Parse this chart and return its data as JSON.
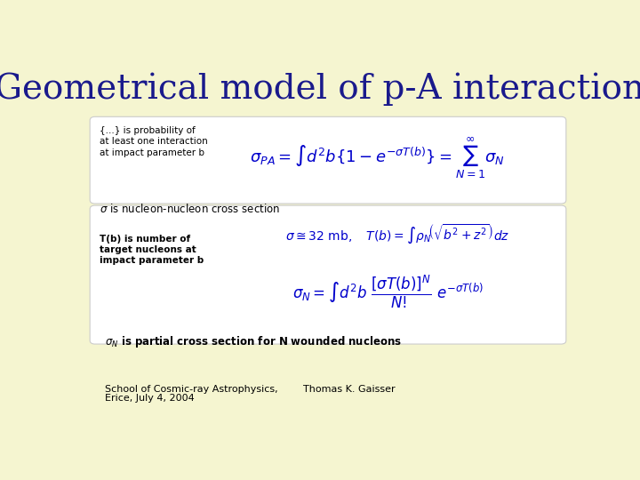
{
  "background_color": "#f5f5d0",
  "title": "Geometrical model of p-A interactions",
  "title_color": "#1a1a8c",
  "title_fontsize": 28,
  "title_family": "serif",
  "box_color": "#ffffff",
  "box_edge_color": "#cccccc",
  "formula_color": "#0000cc",
  "label_color": "#000000",
  "text1_line1": "{...} is probability of",
  "text1_line2": "at least one interaction",
  "text1_line3": "at impact parameter b",
  "text2": "is nucleon-nucleon cross section",
  "text3_line1": "T(b) is number of",
  "text3_line2": "target nucleons at",
  "text3_line3": "impact parameter b",
  "text4_pre": "is partial cross section for N wounded nucleons",
  "footer_left_line1": "School of Cosmic-ray Astrophysics,",
  "footer_left_line2": "Erice, July 4, 2004",
  "footer_right": "Thomas K. Gaisser"
}
